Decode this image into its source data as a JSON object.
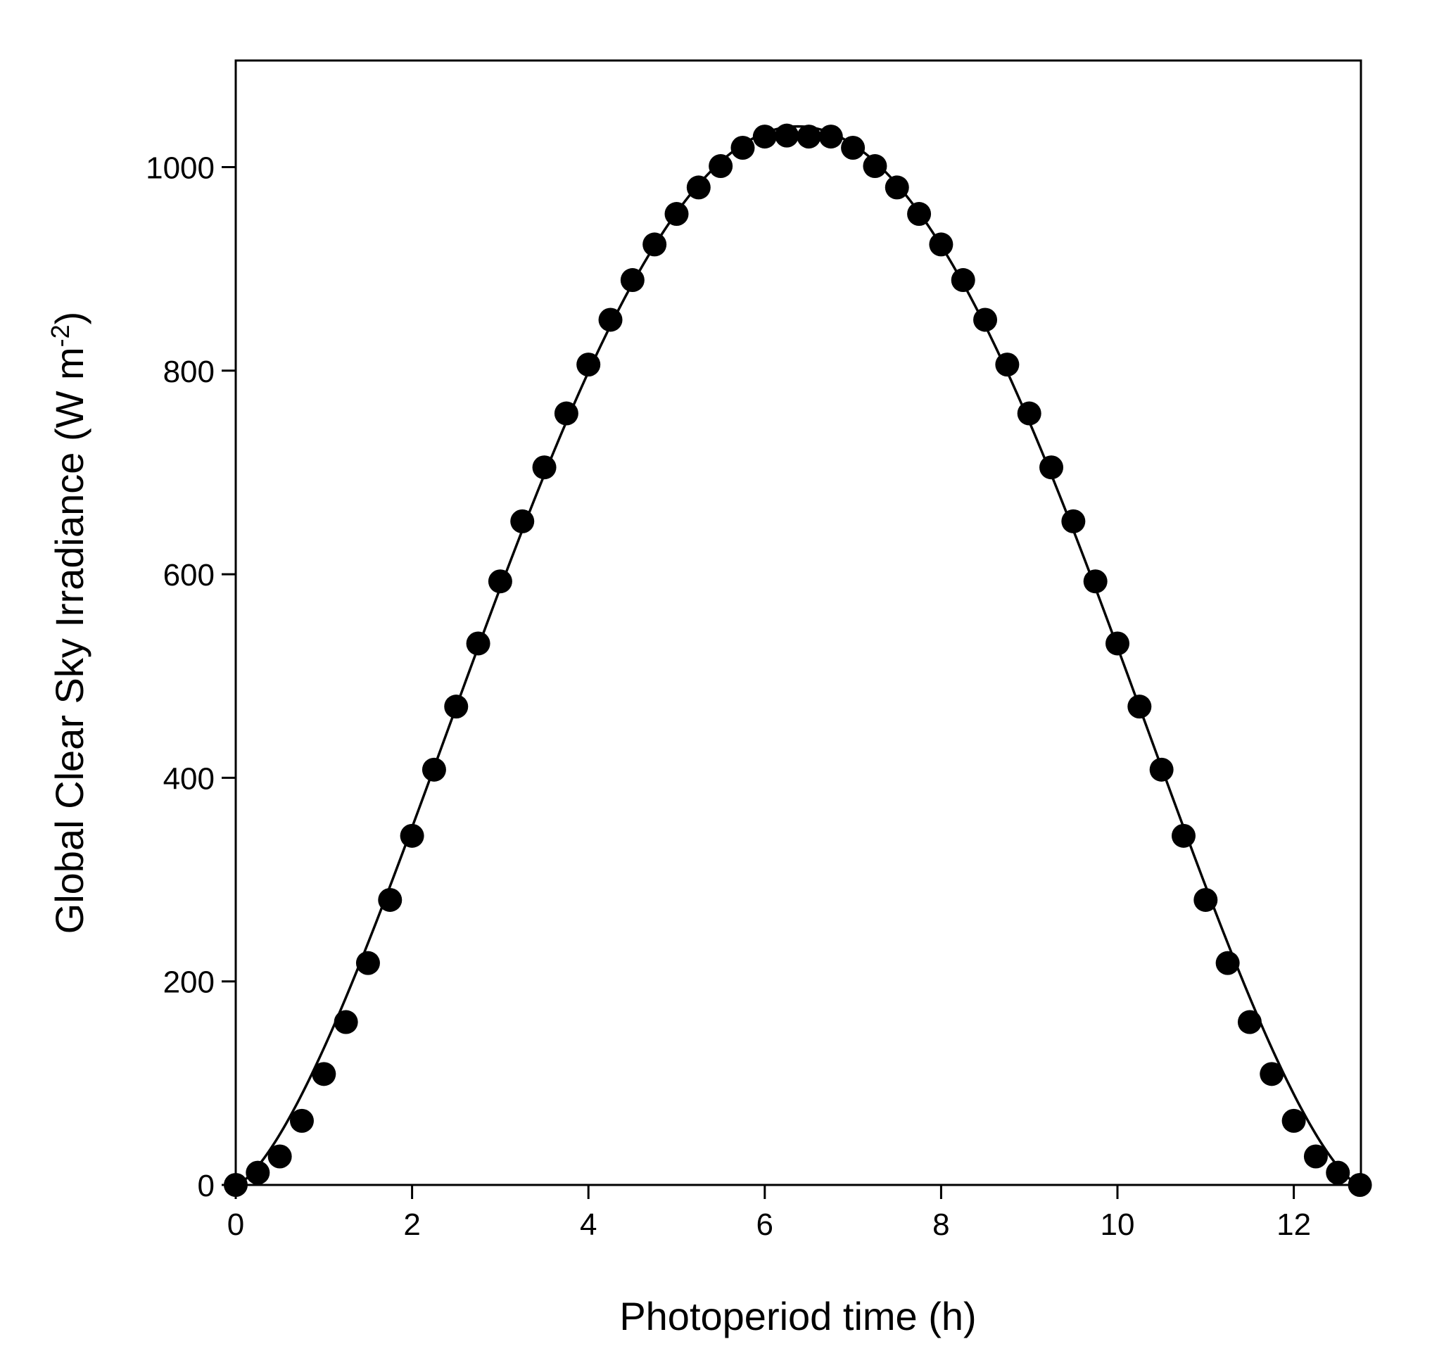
{
  "chart_data": {
    "type": "scatter",
    "xlabel": "Photoperiod time (h)",
    "ylabel": {
      "main": "Global Clear Sky Irradiance (W m",
      "superscript": "-2",
      "close": ")"
    },
    "xlim": [
      0,
      12.75
    ],
    "ylim": [
      0,
      1100
    ],
    "xticks": [
      0,
      2,
      4,
      6,
      8,
      10,
      12
    ],
    "xtick_labels": [
      "0",
      "2",
      "4",
      "6",
      "8",
      "10",
      "12"
    ],
    "yticks": [
      0,
      200,
      400,
      600,
      800,
      1000
    ],
    "ytick_labels": [
      "0",
      "200",
      "400",
      "600",
      "800",
      "1000"
    ],
    "grid": false,
    "legend": "none",
    "marker_color": "#000000",
    "line_color": "#000000",
    "series": [
      {
        "kind": "points",
        "x": [
          0,
          0.25,
          0.5,
          0.75,
          1.0,
          1.25,
          1.5,
          1.75,
          2.0,
          2.25,
          2.5,
          2.75,
          3.0,
          3.25,
          3.5,
          3.75,
          4.0,
          4.25,
          4.5,
          4.75,
          5.0,
          5.25,
          5.5,
          5.75,
          6.0,
          6.25,
          6.5,
          6.75,
          7.0,
          7.25,
          7.5,
          7.75,
          8.0,
          8.25,
          8.5,
          8.75,
          9.0,
          9.25,
          9.5,
          9.75,
          10.0,
          10.25,
          10.5,
          10.75,
          11.0,
          11.25,
          11.5,
          11.75,
          12.0,
          12.25,
          12.5,
          12.75
        ],
        "y": [
          0,
          12,
          28,
          63,
          109,
          160,
          218,
          280,
          343,
          408,
          470,
          532,
          593,
          652,
          705,
          758,
          806,
          850,
          889,
          924,
          954,
          980,
          1001,
          1019,
          1030,
          1031,
          1030,
          1030,
          1019,
          1001,
          980,
          954,
          924,
          889,
          850,
          806,
          758,
          705,
          652,
          593,
          532,
          470,
          408,
          343,
          280,
          218,
          160,
          109,
          63,
          28,
          12,
          0
        ]
      },
      {
        "kind": "fitted-curve",
        "peak_x": 6.375,
        "peak_y": 1040,
        "x_start": 0,
        "x_end": 12.75
      }
    ]
  }
}
